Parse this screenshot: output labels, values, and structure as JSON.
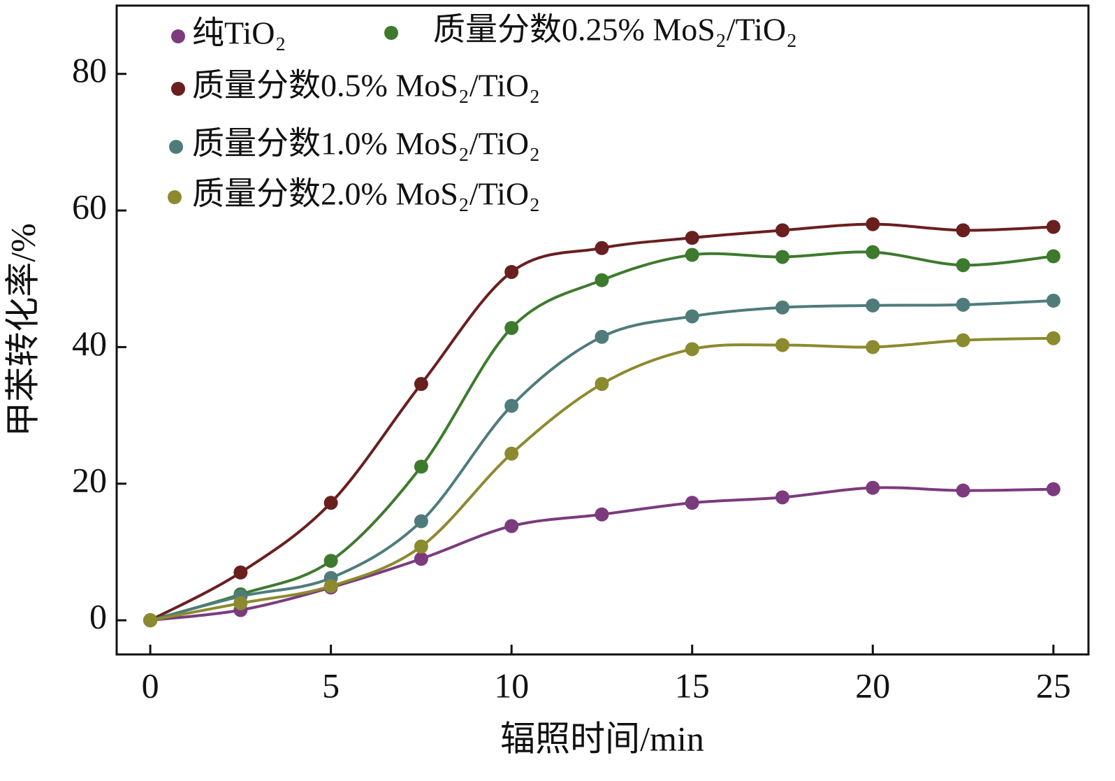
{
  "chart_data": {
    "type": "line",
    "x_label": "辐照时间/min",
    "y_label": "甲苯转化率/%",
    "x": [
      0,
      2.5,
      5,
      7.5,
      10,
      12.5,
      15,
      17.5,
      20,
      22.5,
      25
    ],
    "series": [
      {
        "name": "纯TiO₂",
        "color": "#7b3b7d",
        "values": [
          0,
          1.5,
          4.8,
          9,
          13.8,
          15.5,
          17.2,
          18,
          19.4,
          19,
          19.2
        ]
      },
      {
        "name": "质量分数0.25% MoS₂/TiO₂",
        "color": "#3e7a2e",
        "values": [
          0,
          3.8,
          8.7,
          22.5,
          42.8,
          49.8,
          53.5,
          53.2,
          53.9,
          52,
          53.3
        ]
      },
      {
        "name": "质量分数0.5% MoS₂/TiO₂",
        "color": "#6a1f1f",
        "values": [
          0,
          7,
          17.2,
          34.6,
          51,
          54.5,
          56,
          57.1,
          58,
          57.1,
          57.6
        ]
      },
      {
        "name": "质量分数1.0% MoS₂/TiO₂",
        "color": "#4f7c7b",
        "values": [
          0,
          3.5,
          6.2,
          14.5,
          31.4,
          41.5,
          44.5,
          45.8,
          46.1,
          46.2,
          46.8
        ]
      },
      {
        "name": "质量分数2.0% MoS₂/TiO₂",
        "color": "#8c8a2e",
        "values": [
          0,
          2.5,
          5,
          10.8,
          24.4,
          34.6,
          39.7,
          40.3,
          40,
          41,
          41.3
        ]
      }
    ],
    "xlim": [
      -0.93,
      25.97
    ],
    "ylim": [
      -5,
      90
    ],
    "xticks": [
      0,
      5,
      10,
      15,
      20,
      25
    ],
    "yticks": [
      0,
      20,
      40,
      60,
      80
    ],
    "grid": false
  }
}
